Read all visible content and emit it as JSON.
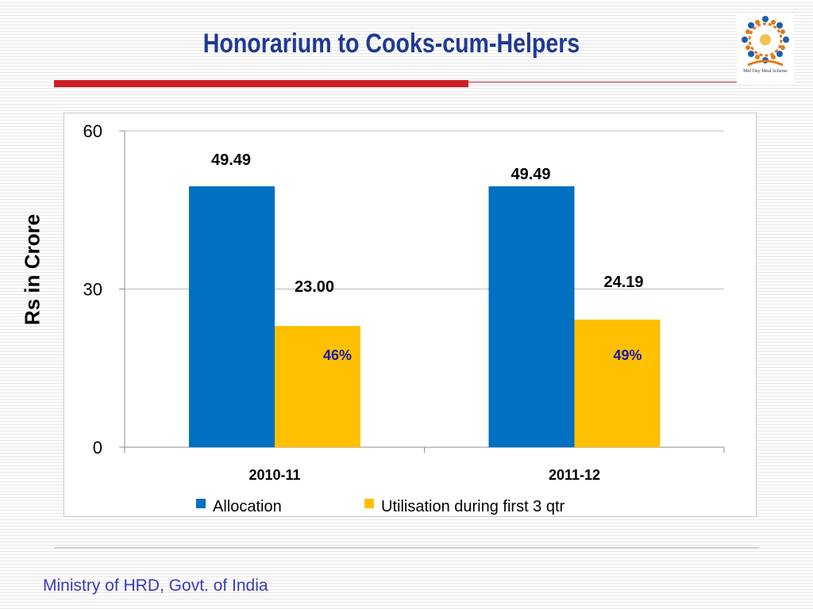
{
  "title": "Honorarium to Cooks-cum-Helpers",
  "logo": {
    "icon": "mid-day-meal-logo-icon",
    "text": "Mid Day Meal Scheme"
  },
  "footer": "Ministry of HRD, Govt. of India",
  "colors": {
    "allocation": "#0070c0",
    "utilisation": "#ffc000",
    "percent_text": "#1a1aa6",
    "title": "#1f3a93"
  },
  "chart_data": {
    "type": "bar",
    "title": "",
    "ylabel": "Rs in Crore",
    "xlabel": "",
    "ylim": [
      0,
      60
    ],
    "yticks": [
      "0",
      "30",
      "60"
    ],
    "grid": true,
    "legend": "bottom",
    "categories": [
      "2010-11",
      "2011-12"
    ],
    "series": [
      {
        "name": "Allocation",
        "values": [
          49.49,
          49.49
        ],
        "labels": [
          "49.49",
          "49.49"
        ]
      },
      {
        "name": "Utilisation during first 3 qtr",
        "values": [
          23.0,
          24.19
        ],
        "labels": [
          "23.00",
          "24.19"
        ],
        "percent_labels": [
          "46%",
          "49%"
        ]
      }
    ]
  }
}
